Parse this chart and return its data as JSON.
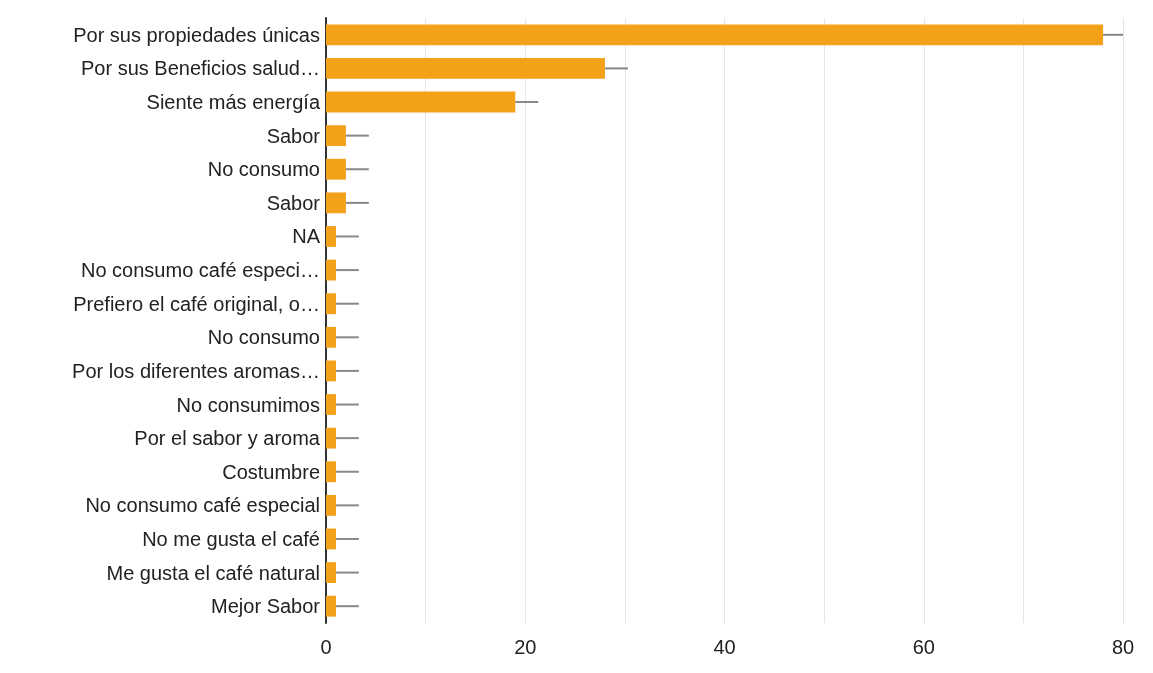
{
  "chart_data": {
    "type": "bar",
    "orientation": "horizontal",
    "categories": [
      "Por sus propiedades únicas",
      "Por sus Beneficios salud…",
      "Siente más energía",
      "Sabor",
      "No consumo",
      "Sabor",
      "NA",
      "No consumo café especi…",
      "Prefiero el café original, o…",
      "No consumo",
      "Por los diferentes aromas…",
      "No consumimos",
      "Por el sabor y aroma",
      "Costumbre",
      "No consumo café especial",
      "No me gusta el café",
      "Me gusta el café natural",
      "Mejor Sabor"
    ],
    "values": [
      78,
      28,
      19,
      2,
      2,
      2,
      1,
      1,
      1,
      1,
      1,
      1,
      1,
      1,
      1,
      1,
      1,
      1
    ],
    "errors": [
      [
        78,
        80
      ],
      [
        28,
        30.3
      ],
      [
        19,
        21.3
      ],
      [
        2,
        4.3
      ],
      [
        2,
        4.3
      ],
      [
        2,
        4.3
      ],
      [
        1,
        3.3
      ],
      [
        1,
        3.3
      ],
      [
        1,
        3.3
      ],
      [
        1,
        3.3
      ],
      [
        1,
        3.3
      ],
      [
        1,
        3.3
      ],
      [
        1,
        3.3
      ],
      [
        1,
        3.3
      ],
      [
        1,
        3.3
      ],
      [
        1,
        3.3
      ],
      [
        1,
        3.3
      ],
      [
        1,
        3.3
      ]
    ],
    "color": "#f4a11a",
    "xlim": [
      0,
      80
    ],
    "xticks": [
      0,
      {
        "value": 10,
        "label": null
      },
      20,
      {
        "value": 30,
        "label": null
      },
      40,
      {
        "value": 50,
        "label": null
      },
      60,
      {
        "value": 70,
        "label": null
      },
      80
    ],
    "grid": true
  }
}
